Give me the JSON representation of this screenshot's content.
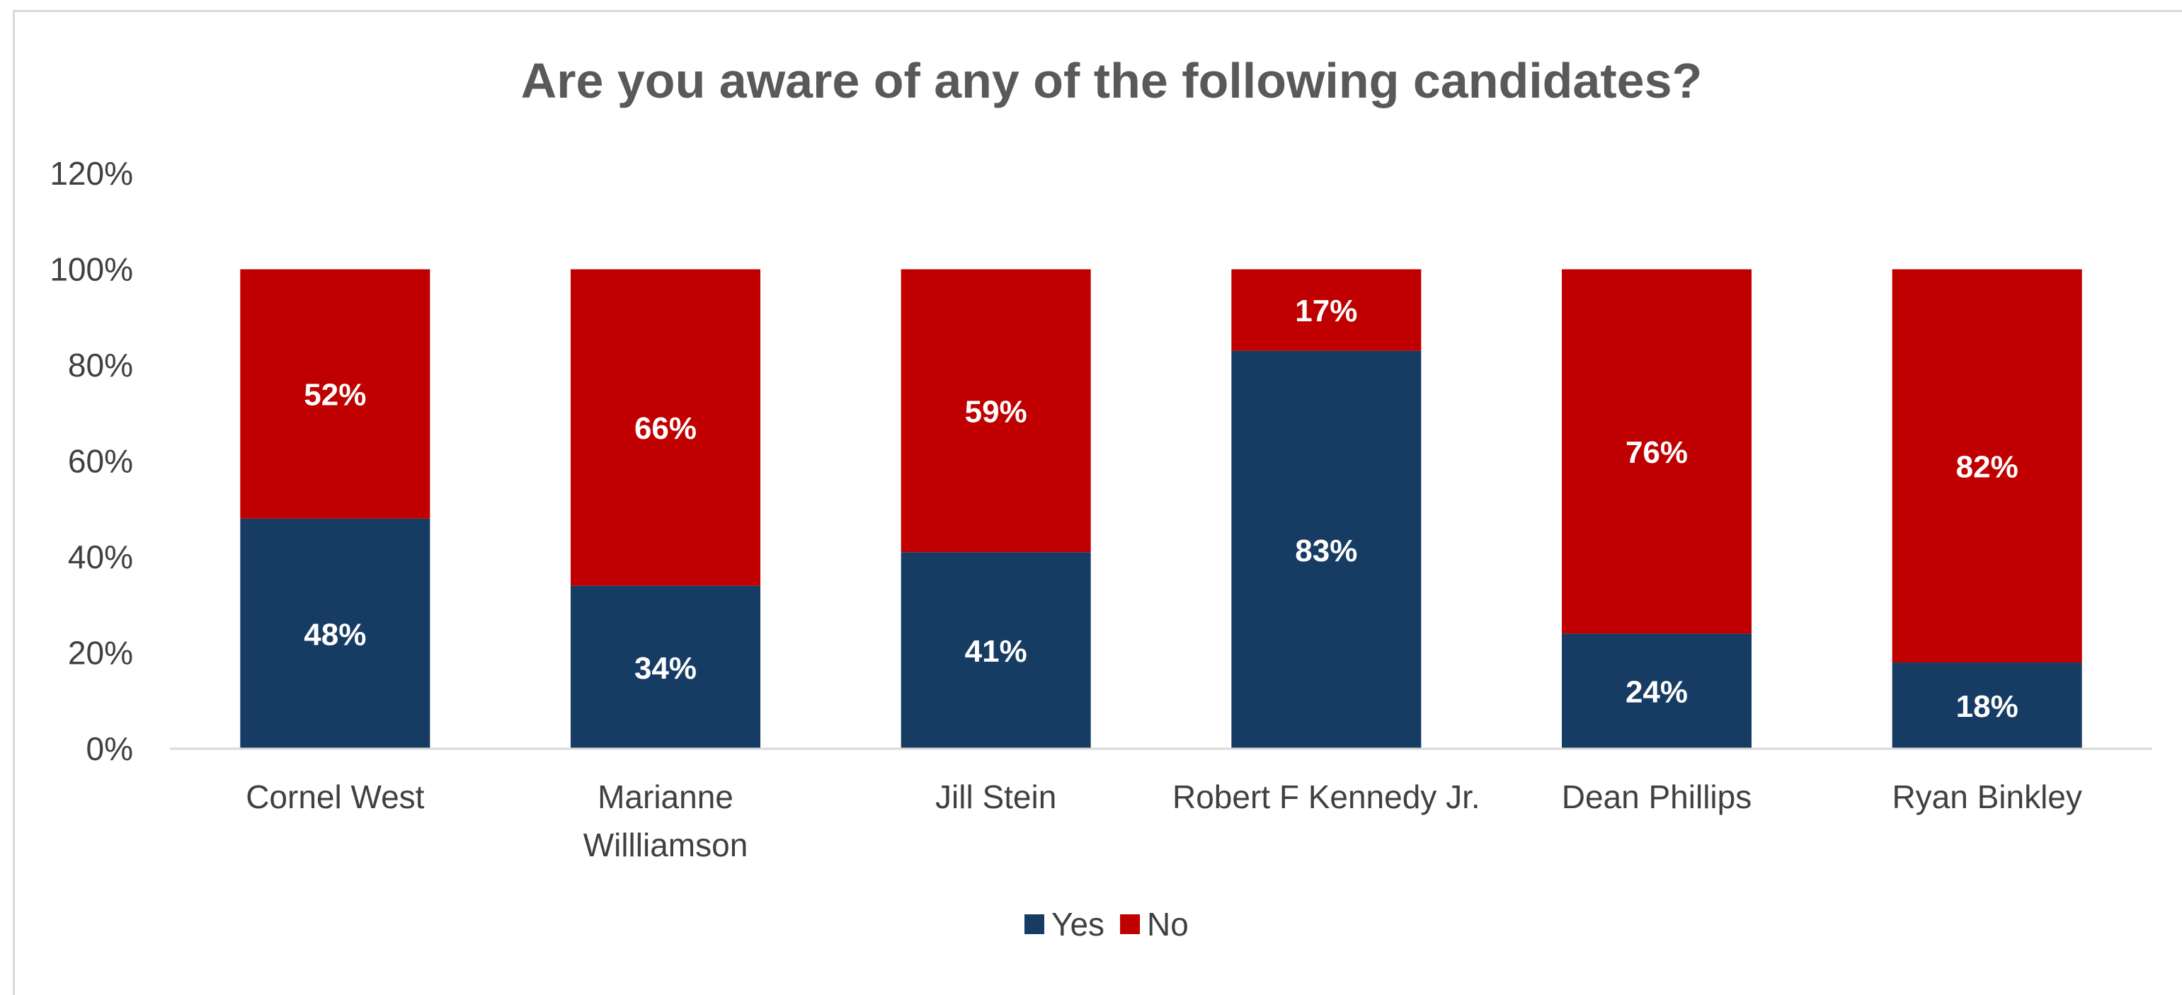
{
  "chart_data": {
    "type": "bar",
    "stacked": true,
    "title": "Are you aware of any of the following candidates?",
    "categories": [
      [
        "Cornel West"
      ],
      [
        "Marianne",
        "Willliamson"
      ],
      [
        "Jill Stein"
      ],
      [
        "Robert F Kennedy Jr."
      ],
      [
        "Dean Phillips"
      ],
      [
        "Ryan Binkley"
      ]
    ],
    "series": [
      {
        "name": "Yes",
        "color": "#173c63",
        "values": [
          48,
          34,
          41,
          83,
          24,
          18
        ]
      },
      {
        "name": "No",
        "color": "#c00000",
        "values": [
          52,
          66,
          59,
          17,
          76,
          82
        ]
      }
    ],
    "data_labels": {
      "Yes": [
        "48%",
        "34%",
        "41%",
        "83%",
        "24%",
        "18%"
      ],
      "No": [
        "52%",
        "66%",
        "59%",
        "17%",
        "76%",
        "82%"
      ]
    },
    "ylim": [
      0,
      120
    ],
    "yticks": [
      "0%",
      "20%",
      "40%",
      "60%",
      "80%",
      "100%",
      "120%"
    ],
    "ytick_values": [
      0,
      20,
      40,
      60,
      80,
      100,
      120
    ],
    "legend": {
      "placement": "bottom",
      "items": [
        "Yes",
        "No"
      ]
    },
    "grid": false
  }
}
